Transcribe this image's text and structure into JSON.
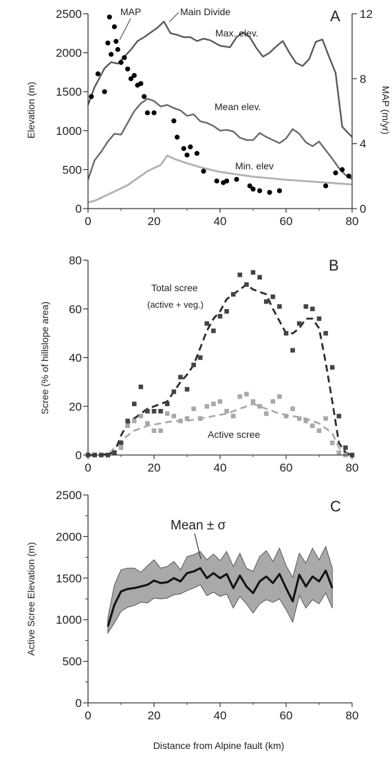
{
  "x_axis_title": "Distance from Alpine fault (km)",
  "chart_data": [
    {
      "panel": "A",
      "type": "line",
      "xlabel": "",
      "ylabel": "Elevation (m)",
      "y2label": "MAP (m/yr)",
      "xlim": [
        0,
        80
      ],
      "ylim": [
        0,
        2500
      ],
      "y2lim": [
        0,
        12
      ],
      "x_ticks": [
        0,
        20,
        40,
        60,
        80
      ],
      "y_ticks": [
        0,
        500,
        1000,
        1500,
        2000,
        2500
      ],
      "y2_ticks": [
        0,
        4,
        8,
        12
      ],
      "grid": false,
      "series": [
        {
          "name": "Max. elev.",
          "color": "#5a5a5a",
          "x": [
            0,
            2,
            4,
            5,
            7,
            9,
            11,
            13,
            15,
            17,
            19,
            21,
            23,
            25,
            27,
            29,
            31,
            33,
            35,
            37,
            40,
            43,
            45,
            47,
            49,
            51,
            53,
            55,
            57,
            59,
            61,
            63,
            65,
            67,
            69,
            71,
            73,
            75,
            77,
            79,
            80
          ],
          "y": [
            1330,
            1560,
            1720,
            1800,
            1880,
            1860,
            1950,
            2040,
            2150,
            2200,
            2260,
            2320,
            2400,
            2250,
            2230,
            2200,
            2200,
            2150,
            2180,
            2160,
            2090,
            2070,
            2200,
            2260,
            2200,
            2060,
            1950,
            2000,
            2080,
            2150,
            2000,
            1870,
            1830,
            1920,
            2140,
            2170,
            1950,
            1740,
            1050,
            960,
            920
          ]
        },
        {
          "name": "Mean elev.",
          "color": "#6a6a6a",
          "x": [
            0,
            2,
            4,
            6,
            8,
            10,
            12,
            14,
            16,
            18,
            20,
            22,
            24,
            26,
            28,
            30,
            32,
            34,
            36,
            38,
            40,
            42,
            44,
            46,
            48,
            50,
            52,
            54,
            56,
            58,
            60,
            62,
            64,
            66,
            68,
            70,
            72,
            74,
            76,
            78,
            80
          ],
          "y": [
            370,
            620,
            730,
            860,
            960,
            950,
            1100,
            1250,
            1350,
            1410,
            1380,
            1310,
            1330,
            1290,
            1260,
            1190,
            1210,
            1120,
            1100,
            1060,
            1000,
            1010,
            990,
            910,
            880,
            880,
            970,
            920,
            880,
            840,
            900,
            1020,
            960,
            850,
            800,
            860,
            750,
            640,
            520,
            430,
            380
          ]
        },
        {
          "name": "Min. elev",
          "color": "#b2b2b2",
          "x": [
            0,
            2,
            4,
            6,
            8,
            10,
            12,
            14,
            16,
            18,
            20,
            22,
            24,
            26,
            28,
            30,
            35,
            40,
            45,
            50,
            55,
            60,
            65,
            70,
            75,
            80
          ],
          "y": [
            80,
            100,
            140,
            180,
            220,
            260,
            300,
            360,
            420,
            480,
            520,
            560,
            680,
            640,
            610,
            580,
            520,
            470,
            440,
            410,
            390,
            370,
            355,
            340,
            325,
            310
          ]
        },
        {
          "name": "MAP",
          "axis": "right",
          "marker": "circle",
          "color": "#000000",
          "x": [
            1,
            3,
            5,
            6,
            6.5,
            7,
            8,
            8.5,
            9,
            10,
            11,
            12,
            13,
            14,
            15,
            16,
            17,
            18,
            20,
            26,
            27,
            29,
            30,
            31,
            33,
            35,
            39,
            41,
            42,
            45,
            49,
            50,
            52,
            55,
            58,
            72,
            75,
            77,
            79
          ],
          "y": [
            6.9,
            8.3,
            7.2,
            10.2,
            11.8,
            9.5,
            11.2,
            10.3,
            9.8,
            9.0,
            9.3,
            8.6,
            8.0,
            8.2,
            7.6,
            7.7,
            6.9,
            5.9,
            5.9,
            5.4,
            4.4,
            3.7,
            3.3,
            3.8,
            3.4,
            2.3,
            1.7,
            1.6,
            1.7,
            1.8,
            1.4,
            1.2,
            1.1,
            1.0,
            1.1,
            1.4,
            2.2,
            2.4,
            2.0
          ]
        }
      ],
      "annotations": [
        "MAP",
        "Main Divide",
        "Max. elev.",
        "Mean elev.",
        "Min. elev"
      ]
    },
    {
      "panel": "B",
      "type": "scatter",
      "xlabel": "",
      "ylabel": "Scree (% of hillslope area)",
      "xlim": [
        0,
        80
      ],
      "ylim": [
        0,
        80
      ],
      "x_ticks": [
        0,
        20,
        40,
        60,
        80
      ],
      "y_ticks": [
        0,
        20,
        40,
        60,
        80
      ],
      "grid": false,
      "series": [
        {
          "name": "Total scree (active + veg.)",
          "color": "#2e2e2e",
          "points_x": [
            0,
            2,
            4,
            6,
            8,
            10,
            12,
            14,
            16,
            18,
            20,
            22,
            24,
            26,
            28,
            30,
            32,
            34,
            36,
            38,
            40,
            42,
            44,
            46,
            48,
            50,
            52,
            54,
            56,
            58,
            60,
            62,
            64,
            66,
            68,
            70,
            72,
            74,
            76,
            78,
            80
          ],
          "points_y": [
            0,
            0,
            0,
            0,
            1,
            5,
            14,
            21,
            28,
            18,
            18,
            18,
            21,
            26,
            32,
            27,
            37,
            40,
            54,
            51,
            57,
            59,
            66,
            74,
            70,
            75,
            73,
            63,
            65,
            61,
            50,
            43,
            54,
            61,
            60,
            56,
            50,
            36,
            16,
            3,
            0
          ],
          "trend_x": [
            0,
            4,
            8,
            10,
            12,
            14,
            16,
            18,
            20,
            22,
            24,
            26,
            28,
            30,
            32,
            34,
            36,
            38,
            40,
            42,
            44,
            46,
            48,
            50,
            52,
            54,
            56,
            58,
            60,
            62,
            64,
            66,
            68,
            70,
            72,
            74,
            76,
            78,
            80
          ],
          "trend_y": [
            0,
            0,
            1,
            8,
            13,
            15,
            17,
            19,
            20,
            21,
            22,
            26,
            30,
            33,
            37,
            44,
            51,
            56,
            59,
            64,
            66,
            68,
            70,
            68,
            67,
            66,
            60,
            55,
            50,
            50,
            52,
            56,
            56,
            52,
            38,
            22,
            5,
            1,
            0
          ]
        },
        {
          "name": "Active scree",
          "color": "#a8a8a8",
          "points_x": [
            0,
            2,
            4,
            6,
            8,
            10,
            12,
            14,
            16,
            18,
            20,
            22,
            24,
            26,
            28,
            30,
            32,
            34,
            36,
            38,
            40,
            42,
            44,
            46,
            48,
            50,
            52,
            54,
            56,
            58,
            60,
            62,
            64,
            66,
            68,
            70,
            72,
            74,
            76,
            78,
            80
          ],
          "points_y": [
            0,
            0,
            0,
            0,
            1,
            3,
            12,
            14,
            16,
            13,
            10,
            10,
            17,
            16,
            14,
            15,
            19,
            15,
            20,
            21,
            22,
            18,
            16,
            24,
            25,
            22,
            20,
            17,
            22,
            24,
            16,
            19,
            15,
            14,
            12,
            10,
            15,
            5,
            1,
            0,
            0
          ],
          "trend_x": [
            0,
            6,
            10,
            14,
            18,
            22,
            26,
            30,
            34,
            38,
            42,
            46,
            50,
            54,
            58,
            62,
            66,
            70,
            74,
            76,
            78,
            80
          ],
          "trend_y": [
            0,
            0,
            6,
            10,
            12,
            13,
            14,
            14,
            15,
            16,
            17,
            19,
            21,
            19,
            17,
            16,
            15,
            13,
            9,
            3,
            1,
            0
          ]
        }
      ],
      "annotations": [
        "Total scree",
        "(active + veg.)",
        "Active scree"
      ]
    },
    {
      "panel": "C",
      "type": "area",
      "xlabel": "Distance from Alpine fault (km)",
      "ylabel": "Active Scree Elevation (m)",
      "xlim": [
        0,
        80
      ],
      "ylim": [
        0,
        2500
      ],
      "x_ticks": [
        0,
        20,
        40,
        60,
        80
      ],
      "y_ticks": [
        0,
        500,
        1000,
        1500,
        2000,
        2500
      ],
      "grid": false,
      "series": [
        {
          "name": "Mean ± σ",
          "x": [
            6,
            8,
            10,
            12,
            14,
            16,
            18,
            20,
            22,
            24,
            26,
            28,
            30,
            32,
            34,
            36,
            38,
            40,
            42,
            44,
            46,
            48,
            50,
            52,
            54,
            56,
            58,
            60,
            62,
            64,
            66,
            68,
            70,
            72,
            74
          ],
          "mean": [
            920,
            1180,
            1340,
            1370,
            1380,
            1400,
            1420,
            1470,
            1440,
            1450,
            1500,
            1460,
            1560,
            1580,
            1620,
            1500,
            1560,
            1500,
            1550,
            1380,
            1530,
            1400,
            1320,
            1460,
            1520,
            1440,
            1550,
            1380,
            1220,
            1540,
            1400,
            1520,
            1460,
            1590,
            1380
          ],
          "upper": [
            1020,
            1420,
            1600,
            1620,
            1620,
            1570,
            1650,
            1720,
            1620,
            1640,
            1700,
            1600,
            1760,
            1780,
            1820,
            1720,
            1790,
            1710,
            1820,
            1640,
            1800,
            1620,
            1580,
            1760,
            1830,
            1700,
            1860,
            1650,
            1510,
            1800,
            1680,
            1860,
            1720,
            1880,
            1620
          ],
          "lower": [
            840,
            960,
            1100,
            1150,
            1170,
            1210,
            1200,
            1260,
            1250,
            1260,
            1300,
            1310,
            1350,
            1380,
            1420,
            1290,
            1330,
            1280,
            1310,
            1140,
            1280,
            1190,
            1080,
            1190,
            1240,
            1210,
            1250,
            1120,
            970,
            1290,
            1140,
            1240,
            1190,
            1320,
            1140
          ]
        }
      ],
      "annotations": [
        "Mean ± σ"
      ]
    }
  ]
}
